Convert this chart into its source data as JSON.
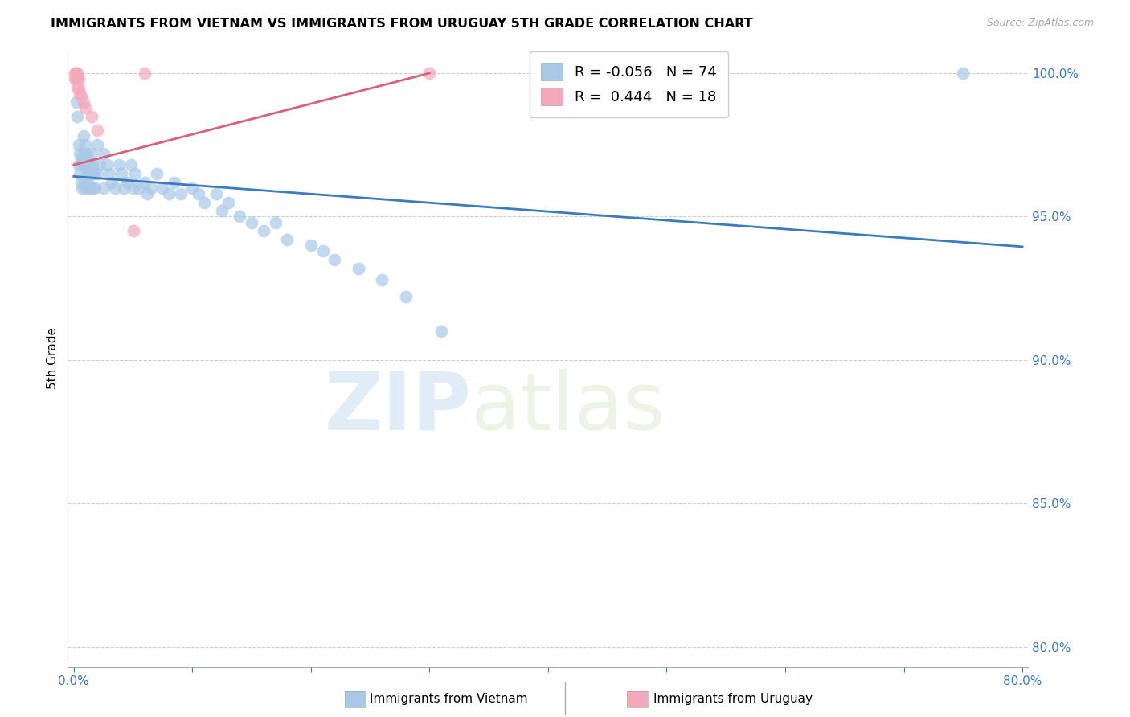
{
  "title": "IMMIGRANTS FROM VIETNAM VS IMMIGRANTS FROM URUGUAY 5TH GRADE CORRELATION CHART",
  "source": "Source: ZipAtlas.com",
  "ylabel": "5th Grade",
  "xlim": [
    -0.005,
    0.805
  ],
  "ylim": [
    0.793,
    1.008
  ],
  "yticks": [
    0.8,
    0.85,
    0.9,
    0.95,
    1.0
  ],
  "xticks": [
    0.0,
    0.1,
    0.2,
    0.3,
    0.4,
    0.5,
    0.6,
    0.7,
    0.8
  ],
  "xtick_labels": [
    "0.0%",
    "",
    "",
    "",
    "",
    "",
    "",
    "",
    "80.0%"
  ],
  "legend_R1": "-0.056",
  "legend_N1": "74",
  "legend_R2": "0.444",
  "legend_N2": "18",
  "color_vietnam": "#a8c8e8",
  "color_uruguay": "#f4a8bc",
  "trendline_vietnam_color": "#3a7abf",
  "trendline_uruguay_color": "#d9607a",
  "watermark_zip": "ZIP",
  "watermark_atlas": "atlas",
  "vietnam_x": [
    0.002,
    0.003,
    0.004,
    0.004,
    0.005,
    0.005,
    0.006,
    0.006,
    0.007,
    0.007,
    0.008,
    0.008,
    0.009,
    0.009,
    0.01,
    0.01,
    0.01,
    0.011,
    0.011,
    0.012,
    0.012,
    0.013,
    0.013,
    0.014,
    0.015,
    0.015,
    0.016,
    0.016,
    0.017,
    0.018,
    0.02,
    0.02,
    0.022,
    0.025,
    0.025,
    0.028,
    0.03,
    0.032,
    0.035,
    0.038,
    0.04,
    0.042,
    0.045,
    0.048,
    0.05,
    0.052,
    0.055,
    0.06,
    0.062,
    0.065,
    0.07,
    0.075,
    0.08,
    0.085,
    0.09,
    0.1,
    0.105,
    0.11,
    0.12,
    0.125,
    0.13,
    0.14,
    0.15,
    0.16,
    0.17,
    0.18,
    0.2,
    0.21,
    0.22,
    0.24,
    0.26,
    0.28,
    0.31,
    0.75
  ],
  "vietnam_y": [
    0.99,
    0.985,
    0.975,
    0.968,
    0.972,
    0.965,
    0.97,
    0.962,
    0.968,
    0.96,
    0.978,
    0.972,
    0.968,
    0.962,
    0.975,
    0.968,
    0.96,
    0.972,
    0.965,
    0.97,
    0.962,
    0.968,
    0.96,
    0.965,
    0.972,
    0.965,
    0.968,
    0.96,
    0.965,
    0.96,
    0.975,
    0.965,
    0.968,
    0.972,
    0.96,
    0.968,
    0.965,
    0.962,
    0.96,
    0.968,
    0.965,
    0.96,
    0.962,
    0.968,
    0.96,
    0.965,
    0.96,
    0.962,
    0.958,
    0.96,
    0.965,
    0.96,
    0.958,
    0.962,
    0.958,
    0.96,
    0.958,
    0.955,
    0.958,
    0.952,
    0.955,
    0.95,
    0.948,
    0.945,
    0.948,
    0.942,
    0.94,
    0.938,
    0.935,
    0.932,
    0.928,
    0.922,
    0.91,
    1.0
  ],
  "uruguay_x": [
    0.001,
    0.001,
    0.002,
    0.002,
    0.003,
    0.003,
    0.003,
    0.004,
    0.004,
    0.005,
    0.006,
    0.008,
    0.01,
    0.015,
    0.02,
    0.05,
    0.06,
    0.3
  ],
  "uruguay_y": [
    1.0,
    0.998,
    1.0,
    0.998,
    1.0,
    0.998,
    0.995,
    0.998,
    0.995,
    0.993,
    0.992,
    0.99,
    0.988,
    0.985,
    0.98,
    0.945,
    1.0,
    1.0
  ],
  "trendline_vn_x0": 0.0,
  "trendline_vn_y0": 0.964,
  "trendline_vn_x1": 0.8,
  "trendline_vn_y1": 0.9395,
  "trendline_uy_x0": 0.0,
  "trendline_uy_y0": 0.968,
  "trendline_uy_x1": 0.3,
  "trendline_uy_y1": 1.0
}
